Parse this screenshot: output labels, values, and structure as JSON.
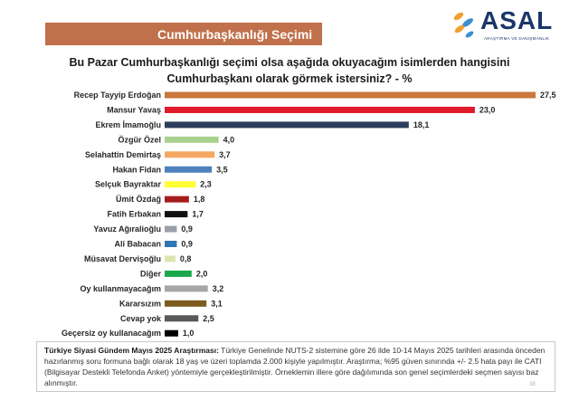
{
  "header": {
    "title": "Cumhurbaşkanlığı Seçimi",
    "logo_text": "ASAL",
    "logo_subtitle": "ARAŞTIRMA VE DANIŞMANLIK"
  },
  "question": {
    "line1": "Bu Pazar Cumhurbaşkanlığı seçimi olsa aşağıda okuyacağım isimlerden hangisini",
    "line2": "Cumhurbaşkanı olarak görmek istersiniz? - %"
  },
  "chart_data": {
    "type": "bar",
    "orientation": "horizontal",
    "title": "",
    "xlabel": "",
    "ylabel": "",
    "grid": false,
    "legend": "none",
    "xlim": [
      0,
      27.5
    ],
    "categories": [
      "Recep Tayyip Erdoğan",
      "Mansur Yavaş",
      "Ekrem İmamoğlu",
      "Özgür Özel",
      "Selahattin Demirtaş",
      "Hakan Fidan",
      "Selçuk Bayraktar",
      "Ümit Özdağ",
      "Fatih Erbakan",
      "Yavuz Ağıralioğlu",
      "Ali Babacan",
      "Müsavat Dervişoğlu",
      "Diğer",
      "Oy kullanmayacağım",
      "Kararsızım",
      "Cevap yok",
      "Geçersiz oy kullanacağım"
    ],
    "values": [
      27.5,
      23.0,
      18.1,
      4.0,
      3.7,
      3.5,
      2.3,
      1.8,
      1.7,
      0.9,
      0.9,
      0.8,
      2.0,
      3.2,
      3.1,
      2.5,
      1.0
    ],
    "value_labels": [
      "27,5",
      "23,0",
      "18,1",
      "4,0",
      "3,7",
      "3,5",
      "2,3",
      "1,8",
      "1,7",
      "0,9",
      "0,9",
      "0,8",
      "2,0",
      "3,2",
      "3,1",
      "2,5",
      "1,0"
    ],
    "colors": [
      "#c9773c",
      "#e0192b",
      "#2c3e5c",
      "#a9d18e",
      "#f4a862",
      "#4f81bd",
      "#ffff33",
      "#a51c1c",
      "#111111",
      "#9aa0a8",
      "#2e75b6",
      "#dbe5b0",
      "#1aa84a",
      "#a6a6a6",
      "#7b5b1e",
      "#595959",
      "#000000"
    ]
  },
  "footnote": {
    "heading": "Türkiye Siyasi Gündem Mayıs 2025 Araştırması:",
    "text": "Türkiye Genelinde NUTS-2 sistemine göre 26 ilde 10-14 Mayıs 2025 tarihleri arasında önceden hazırlanmış soru formuna bağlı olarak 18 yaş ve üzeri toplamda 2.000 kişiyle yapılmıştır. Araştırma; %95 güven sınırında +/- 2.5 hata payı ile CATI (Bilgisayar Destekli Telefonda Anket) yöntemiyle gerçekleştirilmiştir. Örneklemin illere göre dağılımında son genel seçimlerdeki seçmen sayısı baz alınmıştır."
  },
  "page_number": "38"
}
